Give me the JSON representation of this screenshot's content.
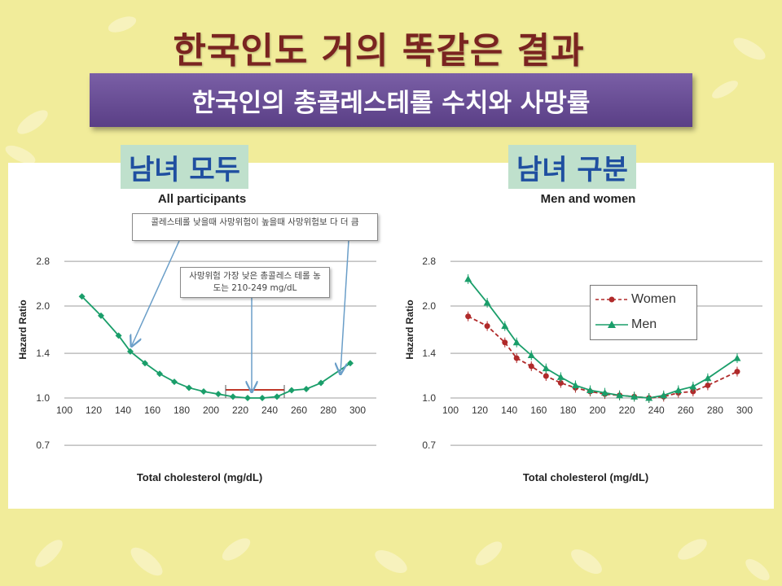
{
  "slide": {
    "title": "한국인도 거의 똑같은 결과",
    "subtitle": "한국인의 총콜레스테롤 수치와 사망률",
    "label_left": "남녀 모두",
    "label_right": "남녀 구분"
  },
  "annotations": {
    "box1": "콜레스테롤 낮을때 사망위험이 높을때 사망위험보 다 더 큼",
    "box2": "사망위험 가장 낮은 총콜레스 테롤 농도는 210-249 mg/dL"
  },
  "colors": {
    "all": "#1a9e6a",
    "women": "#b02a2a",
    "men": "#1a9e6a",
    "optimal_band": "#c0392b",
    "arrow": "#6a9ec8"
  },
  "chart_data": [
    {
      "type": "line",
      "title": "All participants",
      "xlabel": "Total cholesterol (mg/dL)",
      "ylabel": "Hazard Ratio",
      "xlim": [
        100,
        300
      ],
      "ylim": [
        0.7,
        2.8
      ],
      "y_scale": "log",
      "xticks": [
        100,
        120,
        140,
        160,
        180,
        200,
        220,
        240,
        260,
        280,
        300
      ],
      "yticks": [
        0.7,
        1.0,
        1.4,
        2.0,
        2.8
      ],
      "grid": true,
      "series": [
        {
          "x": [
            112,
            125,
            137,
            145,
            155,
            165,
            175,
            185,
            195,
            205,
            215,
            225,
            235,
            245,
            255,
            265,
            275,
            295
          ],
          "values": [
            2.15,
            1.86,
            1.6,
            1.42,
            1.3,
            1.2,
            1.13,
            1.08,
            1.05,
            1.03,
            1.01,
            1.0,
            1.0,
            1.01,
            1.06,
            1.07,
            1.12,
            1.3
          ]
        }
      ],
      "optimal_range": [
        210,
        249
      ]
    },
    {
      "type": "line",
      "title": "Men and women",
      "xlabel": "Total cholesterol (mg/dL)",
      "ylabel": "Hazard Ratio",
      "xlim": [
        100,
        300
      ],
      "ylim": [
        0.7,
        2.8
      ],
      "y_scale": "log",
      "xticks": [
        100,
        120,
        140,
        160,
        180,
        200,
        220,
        240,
        260,
        280,
        300
      ],
      "yticks": [
        0.7,
        1.0,
        1.4,
        2.0,
        2.8
      ],
      "grid": true,
      "legend": "inside-right",
      "series": [
        {
          "name": "Women",
          "x": [
            112,
            125,
            137,
            145,
            155,
            165,
            175,
            185,
            195,
            205,
            215,
            225,
            235,
            245,
            255,
            265,
            275,
            295
          ],
          "values": [
            1.85,
            1.72,
            1.52,
            1.35,
            1.27,
            1.18,
            1.12,
            1.08,
            1.05,
            1.03,
            1.02,
            1.01,
            1.0,
            1.01,
            1.04,
            1.05,
            1.1,
            1.22
          ]
        },
        {
          "name": "Men",
          "x": [
            112,
            125,
            137,
            145,
            155,
            165,
            175,
            185,
            195,
            205,
            215,
            225,
            235,
            245,
            255,
            265,
            275,
            295
          ],
          "values": [
            2.45,
            2.05,
            1.72,
            1.52,
            1.38,
            1.25,
            1.17,
            1.1,
            1.06,
            1.04,
            1.02,
            1.01,
            1.0,
            1.02,
            1.06,
            1.09,
            1.16,
            1.35
          ]
        }
      ]
    }
  ]
}
